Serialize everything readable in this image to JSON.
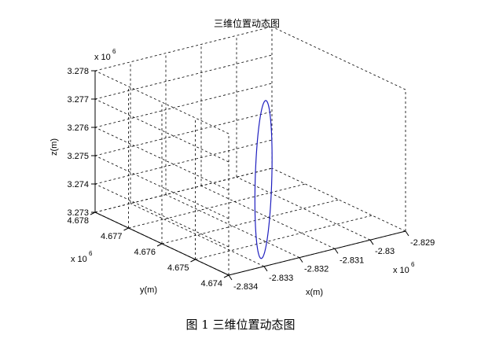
{
  "chart_data": {
    "type": "line3d",
    "title": "三维位置动态图",
    "xlabel": "x(m)",
    "ylabel": "y(m)",
    "zlabel": "z(m)",
    "x_multiplier": "x 10",
    "x_multiplier_exp": "6",
    "y_multiplier": "x 10",
    "y_multiplier_exp": "6",
    "z_multiplier": "x 10",
    "z_multiplier_exp": "6",
    "x_ticks": [
      "-2.834",
      "-2.833",
      "-2.832",
      "-2.831",
      "-2.83",
      "-2.829"
    ],
    "y_ticks": [
      "4.674",
      "4.675",
      "4.676",
      "4.677",
      "4.678"
    ],
    "z_ticks": [
      "3.273",
      "3.274",
      "3.275",
      "3.276",
      "3.277",
      "3.278"
    ],
    "xlim": [
      -2.834,
      -2.829
    ],
    "ylim": [
      4.674,
      4.678
    ],
    "zlim": [
      3.273,
      3.278
    ],
    "grid": true,
    "line_color": "#1f1fbf",
    "orbit": {
      "center": [
        -2.8316,
        4.6755,
        3.2748
      ],
      "half_axis_a": [
        0.0012,
        0.0012,
        0.00175
      ],
      "half_axis_b": [
        0.00012,
        -0.00012,
        0.0
      ]
    }
  },
  "caption": "图 1  三维位置动态图"
}
